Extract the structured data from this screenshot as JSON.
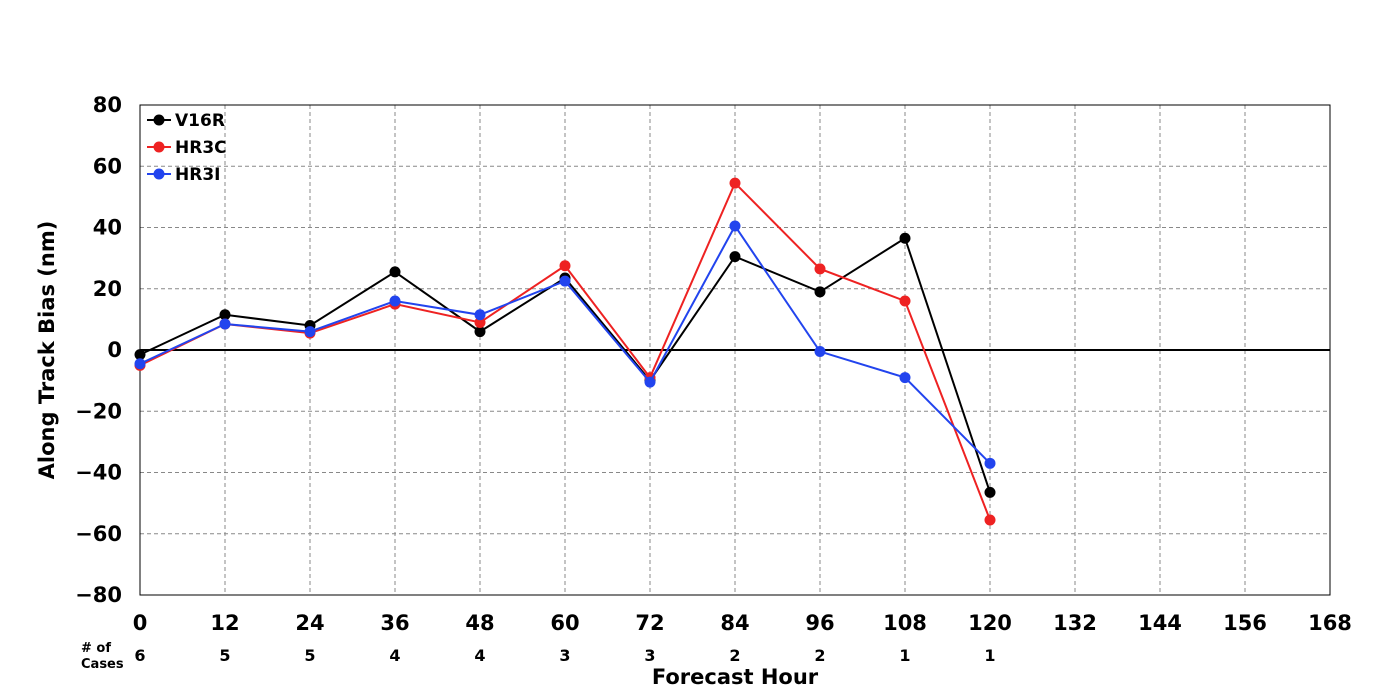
{
  "chart_data": {
    "type": "line",
    "xlabel": "Forecast Hour",
    "ylabel": "Along Track Bias (nm)",
    "xlim": [
      0,
      168
    ],
    "ylim": [
      -80,
      80
    ],
    "x_ticks": [
      0,
      12,
      24,
      36,
      48,
      60,
      72,
      84,
      96,
      108,
      120,
      132,
      144,
      156,
      168
    ],
    "y_ticks": [
      80,
      60,
      40,
      20,
      0,
      -20,
      -40,
      -60,
      -80
    ],
    "y_tick_labels": [
      "80",
      "60",
      "40",
      "20",
      "0",
      "−20",
      "−40",
      "−60",
      "−80"
    ],
    "grid": true,
    "legend_position": "top-left",
    "cases_label": [
      "# of",
      "Cases"
    ],
    "cases": {
      "x": [
        0,
        12,
        24,
        36,
        48,
        60,
        72,
        84,
        96,
        108,
        120
      ],
      "counts": [
        "6",
        "5",
        "5",
        "4",
        "4",
        "3",
        "3",
        "2",
        "2",
        "1",
        "1"
      ]
    },
    "series": [
      {
        "name": "V16R",
        "color": "#000000",
        "x": [
          0,
          12,
          24,
          36,
          48,
          60,
          72,
          84,
          96,
          108,
          120
        ],
        "values": [
          -1.5,
          11.5,
          8,
          25.5,
          6,
          23.5,
          -10,
          30.5,
          19,
          36.5,
          -46.5
        ]
      },
      {
        "name": "HR3C",
        "color": "#ee2222",
        "x": [
          0,
          12,
          24,
          36,
          48,
          60,
          72,
          84,
          96,
          108,
          120
        ],
        "values": [
          -5,
          8.5,
          5.5,
          15,
          9,
          27.5,
          -9,
          54.5,
          26.5,
          16,
          -55.5
        ]
      },
      {
        "name": "HR3I",
        "color": "#2244ee",
        "x": [
          0,
          12,
          24,
          36,
          48,
          60,
          72,
          84,
          96,
          108,
          120
        ],
        "values": [
          -4.5,
          8.5,
          6,
          16,
          11.5,
          22.5,
          -10.5,
          40.5,
          -0.5,
          -9,
          -37
        ]
      }
    ]
  }
}
